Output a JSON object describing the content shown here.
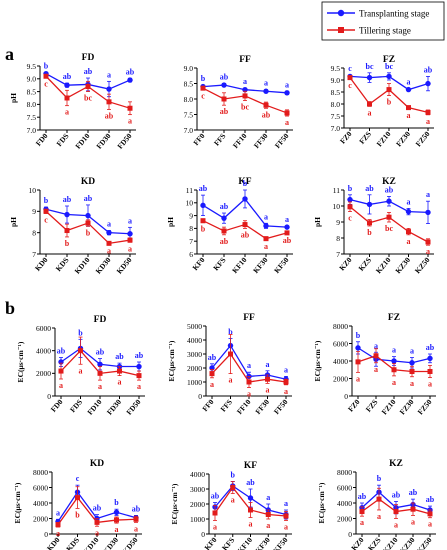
{
  "figure": {
    "legend": {
      "items": [
        {
          "label": "Transplanting stage",
          "color": "#1a1aff",
          "marker": "circle"
        },
        {
          "label": "Tillering stage",
          "color": "#e21b1b",
          "marker": "square"
        }
      ]
    },
    "section_labels": {
      "a": "a",
      "b": "b"
    },
    "colors": {
      "series1": "#1a1aff",
      "series2": "#e21b1b",
      "axis": "#000000",
      "background": "#ffffff"
    }
  },
  "chart_data": [
    {
      "type": "line",
      "title": "FD",
      "xlabel": "",
      "ylabel": "pH",
      "categories": [
        "FD0",
        "FDS",
        "FD10",
        "FD30",
        "FD50"
      ],
      "ylim": [
        7.0,
        9.5
      ],
      "yticks": [
        7.0,
        7.5,
        8.0,
        8.5,
        9.0,
        9.5
      ],
      "ytick_labels": [
        "7.0",
        "7.5",
        "8.0",
        "8.5",
        "9.0",
        "9.5"
      ],
      "series": [
        {
          "name": "Transplanting stage",
          "values": [
            9.2,
            8.75,
            8.78,
            8.6,
            8.95
          ],
          "errors": [
            0.05,
            0.08,
            0.25,
            0.3,
            0.07
          ],
          "letters": [
            "b",
            "ab",
            "ab",
            "a",
            "ab"
          ]
        },
        {
          "name": "Tillering stage",
          "values": [
            9.1,
            8.25,
            8.7,
            8.1,
            7.85
          ],
          "errors": [
            0.05,
            0.3,
            0.2,
            0.3,
            0.25
          ],
          "letters": [
            "c",
            "a",
            "bc",
            "ab",
            "a"
          ]
        }
      ]
    },
    {
      "type": "line",
      "title": "FF",
      "xlabel": "",
      "ylabel": "",
      "categories": [
        "FF0",
        "FFS",
        "FF10",
        "FF30",
        "FF50"
      ],
      "ylim": [
        7.0,
        9.0
      ],
      "yticks": [
        7.0,
        7.5,
        8.0,
        8.5,
        9.0
      ],
      "ytick_labels": [
        "7.0",
        "7.5",
        "8.0",
        "8.5",
        "9.0"
      ],
      "series": [
        {
          "name": "Transplanting stage",
          "values": [
            8.4,
            8.45,
            8.3,
            8.25,
            8.2
          ],
          "errors": [
            0.05,
            0.05,
            0.05,
            0.05,
            0.05
          ],
          "letters": [
            "b",
            "ab",
            "a",
            "a",
            "a"
          ]
        },
        {
          "name": "Tillering stage",
          "values": [
            8.35,
            8.0,
            8.1,
            7.8,
            7.55
          ],
          "errors": [
            0.05,
            0.2,
            0.15,
            0.1,
            0.1
          ],
          "letters": [
            "c",
            "ab",
            "bc",
            "ab",
            "a"
          ]
        }
      ]
    },
    {
      "type": "line",
      "title": "FZ",
      "xlabel": "",
      "ylabel": "",
      "categories": [
        "FZ0",
        "FZS",
        "FZ10",
        "FZ30",
        "FZ50"
      ],
      "ylim": [
        7.0,
        9.5
      ],
      "yticks": [
        7.0,
        7.5,
        8.0,
        8.5,
        9.0,
        9.5
      ],
      "ytick_labels": [
        "7.0",
        "7.5",
        "8.0",
        "8.5",
        "9.0",
        "9.5"
      ],
      "series": [
        {
          "name": "Transplanting stage",
          "values": [
            9.15,
            9.1,
            9.15,
            8.6,
            8.85
          ],
          "errors": [
            0.05,
            0.2,
            0.15,
            0.05,
            0.3
          ],
          "letters": [
            "c",
            "bc",
            "bc",
            "a",
            "ab"
          ]
        },
        {
          "name": "Tillering stage",
          "values": [
            9.1,
            8.0,
            8.6,
            7.85,
            7.65
          ],
          "errors": [
            0.05,
            0.1,
            0.25,
            0.05,
            0.1
          ],
          "letters": [
            "c",
            "a",
            "b",
            "a",
            "a"
          ]
        }
      ]
    },
    {
      "type": "line",
      "title": "KD",
      "xlabel": "",
      "ylabel": "pH",
      "categories": [
        "KD0",
        "KDS",
        "KD10",
        "KD30",
        "KD50"
      ],
      "ylim": [
        7,
        10
      ],
      "yticks": [
        7,
        8,
        9,
        10
      ],
      "ytick_labels": [
        "7",
        "8",
        "9",
        "10"
      ],
      "series": [
        {
          "name": "Transplanting stage",
          "values": [
            9.1,
            8.85,
            8.8,
            8.0,
            7.95
          ],
          "errors": [
            0.1,
            0.4,
            0.5,
            0.1,
            0.3
          ],
          "letters": [
            "b",
            "ab",
            "ab",
            "a",
            "a"
          ]
        },
        {
          "name": "Tillering stage",
          "values": [
            9.0,
            8.1,
            8.45,
            7.5,
            7.65
          ],
          "errors": [
            0.1,
            0.3,
            0.15,
            0.05,
            0.1
          ],
          "letters": [
            "c",
            "b",
            "b",
            "a",
            "a"
          ]
        }
      ]
    },
    {
      "type": "line",
      "title": "KF",
      "xlabel": "",
      "ylabel": "pH",
      "categories": [
        "KF0",
        "KFS",
        "KF10",
        "KF30",
        "KF50"
      ],
      "ylim": [
        6,
        11
      ],
      "yticks": [
        6,
        7,
        8,
        9,
        10,
        11
      ],
      "ytick_labels": [
        "6",
        "7",
        "8",
        "9",
        "10",
        "11"
      ],
      "series": [
        {
          "name": "Transplanting stage",
          "values": [
            9.8,
            8.8,
            10.3,
            8.2,
            8.1
          ],
          "errors": [
            0.8,
            0.4,
            0.7,
            0.2,
            0.1
          ],
          "letters": [
            "ab",
            "ab",
            "b",
            "a",
            "a"
          ]
        },
        {
          "name": "Tillering stage",
          "values": [
            8.6,
            7.8,
            8.3,
            7.2,
            7.65
          ],
          "errors": [
            0.15,
            0.3,
            0.3,
            0.1,
            0.1
          ],
          "letters": [
            "b",
            "ab",
            "ab",
            "a",
            "ab"
          ]
        }
      ]
    },
    {
      "type": "line",
      "title": "KZ",
      "xlabel": "",
      "ylabel": "pH",
      "categories": [
        "KZ0",
        "KZS",
        "KZ10",
        "KZ30",
        "KZ50"
      ],
      "ylim": [
        7,
        11
      ],
      "yticks": [
        7,
        8,
        9,
        10,
        11
      ],
      "ytick_labels": [
        "7",
        "8",
        "9",
        "10",
        "11"
      ],
      "series": [
        {
          "name": "Transplanting stage",
          "values": [
            10.4,
            10.1,
            10.3,
            9.65,
            9.6
          ],
          "errors": [
            0.3,
            0.6,
            0.3,
            0.2,
            0.7
          ],
          "letters": [
            "b",
            "ab",
            "ab",
            "a",
            "a"
          ]
        },
        {
          "name": "Tillering stage",
          "values": [
            9.95,
            8.95,
            9.3,
            8.4,
            7.75
          ],
          "errors": [
            0.3,
            0.2,
            0.3,
            0.2,
            0.2
          ],
          "letters": [
            "c",
            "b",
            "bc",
            "a",
            "a"
          ]
        }
      ]
    },
    {
      "type": "line",
      "title": "FD",
      "xlabel": "",
      "ylabel": "EC(μs·cm⁻¹)",
      "categories": [
        "FD0",
        "FDS",
        "FD10",
        "FD30",
        "FD50"
      ],
      "ylim": [
        0,
        6000
      ],
      "yticks": [
        0,
        2000,
        4000,
        6000
      ],
      "ytick_labels": [
        "0",
        "2000",
        "4000",
        "6000"
      ],
      "series": [
        {
          "name": "Transplanting stage",
          "values": [
            3000,
            4200,
            2800,
            2600,
            2600
          ],
          "errors": [
            400,
            800,
            500,
            300,
            400
          ],
          "letters": [
            "ab",
            "b",
            "ab",
            "ab",
            "ab"
          ]
        },
        {
          "name": "Tillering stage",
          "values": [
            2200,
            4000,
            2000,
            2200,
            1800
          ],
          "errors": [
            700,
            1200,
            600,
            400,
            400
          ],
          "letters": [
            "a",
            "a",
            "a",
            "a",
            "a"
          ]
        }
      ]
    },
    {
      "type": "line",
      "title": "FF",
      "xlabel": "",
      "ylabel": "EC(μs·cm⁻¹)",
      "categories": [
        "FF0",
        "FFS",
        "FF10",
        "FF30",
        "FF50"
      ],
      "ylim": [
        0,
        5000
      ],
      "yticks": [
        0,
        1000,
        2000,
        3000,
        4000,
        5000
      ],
      "ytick_labels": [
        "0",
        "1000",
        "2000",
        "3000",
        "4000",
        "5000"
      ],
      "series": [
        {
          "name": "Transplanting stage",
          "values": [
            2000,
            3600,
            1400,
            1500,
            1200
          ],
          "errors": [
            300,
            500,
            300,
            300,
            200
          ],
          "letters": [
            "ab",
            "b",
            "a",
            "a",
            "a"
          ]
        },
        {
          "name": "Tillering stage",
          "values": [
            1600,
            3000,
            1000,
            1200,
            1000
          ],
          "errors": [
            300,
            1400,
            400,
            300,
            200
          ],
          "letters": [
            "a",
            "a",
            "a",
            "a",
            "a"
          ]
        }
      ]
    },
    {
      "type": "line",
      "title": "FZ",
      "xlabel": "",
      "ylabel": "EC(μs·cm⁻¹)",
      "categories": [
        "FZ0",
        "FZS",
        "FZ10",
        "FZ30",
        "FZ50"
      ],
      "ylim": [
        0,
        8000
      ],
      "yticks": [
        0,
        2000,
        4000,
        6000,
        8000
      ],
      "ytick_labels": [
        "0",
        "2000",
        "4000",
        "6000",
        "8000"
      ],
      "series": [
        {
          "name": "Transplanting stage",
          "values": [
            5500,
            4200,
            4000,
            3800,
            4300
          ],
          "errors": [
            700,
            800,
            500,
            600,
            500
          ],
          "letters": [
            "b",
            "a",
            "a",
            "a",
            "ab"
          ]
        },
        {
          "name": "Tillering stage",
          "values": [
            3900,
            4600,
            3000,
            2800,
            2800
          ],
          "errors": [
            1200,
            800,
            700,
            600,
            700
          ],
          "letters": [
            "a",
            "a",
            "a",
            "a",
            "a"
          ]
        }
      ]
    },
    {
      "type": "line",
      "title": "KD",
      "xlabel": "",
      "ylabel": "EC(μs·cm⁻¹)",
      "categories": [
        "KD0",
        "KDS",
        "KD10",
        "KD30",
        "KD50"
      ],
      "ylim": [
        0,
        8000
      ],
      "yticks": [
        0,
        2000,
        4000,
        6000,
        8000
      ],
      "ytick_labels": [
        "0",
        "2000",
        "4000",
        "6000",
        "8000"
      ],
      "series": [
        {
          "name": "Transplanting stage",
          "values": [
            1600,
            5400,
            2000,
            2800,
            2100
          ],
          "errors": [
            300,
            900,
            500,
            400,
            300
          ],
          "letters": [
            "a",
            "c",
            "ab",
            "b",
            "ab"
          ]
        },
        {
          "name": "Tillering stage",
          "values": [
            1200,
            4700,
            1500,
            1800,
            1900
          ],
          "errors": [
            300,
            1400,
            500,
            400,
            400
          ],
          "letters": [
            "a",
            "b",
            "a",
            "a",
            "a"
          ]
        }
      ]
    },
    {
      "type": "line",
      "title": "KF",
      "xlabel": "",
      "ylabel": "EC(μs·cm⁻¹)",
      "categories": [
        "KF0",
        "KFS",
        "KF10",
        "KF30",
        "KF50"
      ],
      "ylim": [
        0,
        4000
      ],
      "yticks": [
        0,
        1000,
        2000,
        3000,
        4000
      ],
      "ytick_labels": [
        "0",
        "1000",
        "2000",
        "3000",
        "4000"
      ],
      "series": [
        {
          "name": "Transplanting stage",
          "values": [
            1800,
            3200,
            2400,
            1600,
            1300
          ],
          "errors": [
            300,
            300,
            600,
            400,
            300
          ],
          "letters": [
            "ab",
            "b",
            "ab",
            "a",
            "a"
          ]
        },
        {
          "name": "Tillering stage",
          "values": [
            1400,
            3100,
            1600,
            1300,
            1200
          ],
          "errors": [
            500,
            400,
            500,
            300,
            300
          ],
          "letters": [
            "a",
            "a",
            "a",
            "a",
            "a"
          ]
        }
      ]
    },
    {
      "type": "line",
      "title": "KZ",
      "xlabel": "",
      "ylabel": "EC(μs·cm⁻¹)",
      "categories": [
        "KZ0",
        "KZS",
        "KZ10",
        "KZ30",
        "KZ50"
      ],
      "ylim": [
        0,
        8000
      ],
      "yticks": [
        0,
        2000,
        4000,
        6000,
        8000
      ],
      "ytick_labels": [
        "0",
        "2000",
        "4000",
        "6000",
        "8000"
      ],
      "series": [
        {
          "name": "Transplanting stage",
          "values": [
            3400,
            5400,
            3400,
            3800,
            3100
          ],
          "errors": [
            600,
            900,
            800,
            700,
            500
          ],
          "letters": [
            "ab",
            "b",
            "ab",
            "ab",
            "ab"
          ]
        },
        {
          "name": "Tillering stage",
          "values": [
            2900,
            4500,
            2900,
            3200,
            2600
          ],
          "errors": [
            600,
            1400,
            900,
            800,
            500
          ],
          "letters": [
            "a",
            "a",
            "a",
            "a",
            "a"
          ]
        }
      ]
    }
  ]
}
